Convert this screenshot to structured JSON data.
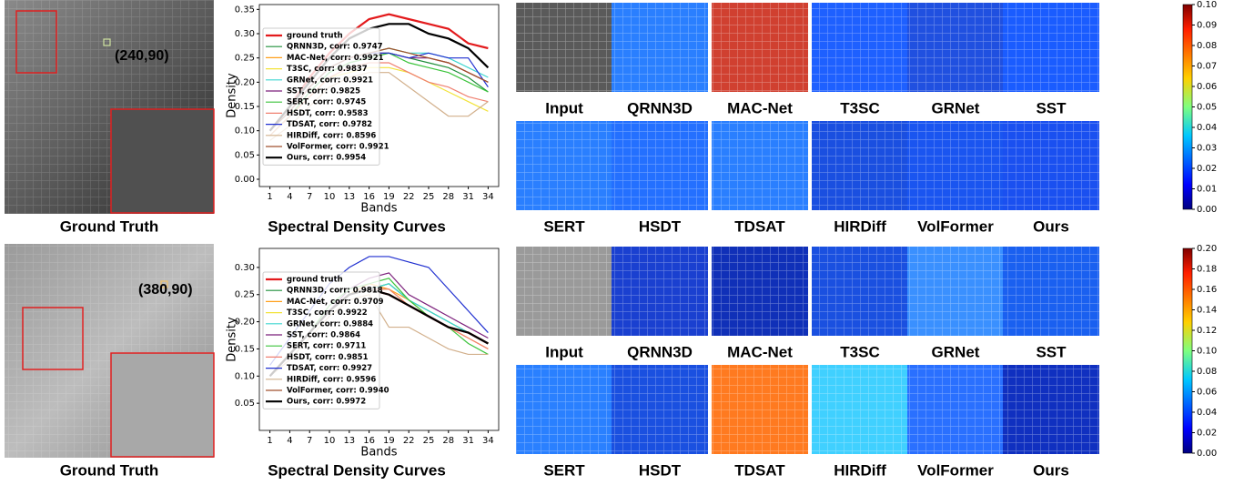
{
  "chart_data": [
    {
      "type": "line",
      "xlabel": "Bands",
      "ylabel": "Density",
      "x": [
        1,
        4,
        7,
        10,
        13,
        16,
        19,
        22,
        25,
        28,
        31,
        34
      ],
      "xlim": [
        -0.6,
        35.6
      ],
      "xticks": [
        1,
        4,
        7,
        10,
        13,
        16,
        19,
        22,
        25,
        28,
        31,
        34
      ],
      "ylim": [
        -0.015,
        0.36
      ],
      "yticks": [
        {
          "value": 0,
          "label": "0.00"
        },
        0.05,
        {
          "value": 0.1,
          "label": "0.10"
        },
        0.15,
        {
          "value": 0.2,
          "label": "0.20"
        },
        0.25,
        {
          "value": 0.3,
          "label": "0.30"
        },
        0.35
      ],
      "series": [
        {
          "name": "ground truth",
          "color": "#e31a1c",
          "values": [
            0.1,
            0.15,
            0.21,
            0.26,
            0.3,
            0.33,
            0.34,
            0.33,
            0.32,
            0.31,
            0.28,
            0.27
          ]
        },
        {
          "name": "QRNN3D, corr: 0.9747",
          "color": "#1f8f3a",
          "values": [
            0.09,
            0.13,
            0.18,
            0.22,
            0.24,
            0.25,
            0.26,
            0.25,
            0.24,
            0.23,
            0.21,
            0.18
          ]
        },
        {
          "name": "MAC-Net, corr: 0.9921",
          "color": "#ff9f1a",
          "values": [
            0.1,
            0.14,
            0.19,
            0.23,
            0.25,
            0.26,
            0.27,
            0.26,
            0.25,
            0.24,
            0.22,
            0.2
          ]
        },
        {
          "name": "T3SC, corr: 0.9837",
          "color": "#f2e33a",
          "values": [
            0.09,
            0.13,
            0.17,
            0.21,
            0.22,
            0.23,
            0.23,
            0.22,
            0.2,
            0.18,
            0.16,
            0.14
          ]
        },
        {
          "name": "GRNet, corr: 0.9921",
          "color": "#3fd6d0",
          "values": [
            0.1,
            0.14,
            0.19,
            0.23,
            0.25,
            0.26,
            0.27,
            0.26,
            0.26,
            0.25,
            0.23,
            0.21
          ]
        },
        {
          "name": "SST, corr: 0.9825",
          "color": "#7b1f7b",
          "values": [
            0.1,
            0.14,
            0.19,
            0.23,
            0.25,
            0.26,
            0.26,
            0.25,
            0.25,
            0.24,
            0.22,
            0.2
          ]
        },
        {
          "name": "SERT, corr: 0.9745",
          "color": "#3cc43c",
          "values": [
            0.09,
            0.13,
            0.18,
            0.22,
            0.24,
            0.25,
            0.26,
            0.24,
            0.23,
            0.22,
            0.2,
            0.18
          ]
        },
        {
          "name": "HSDT, corr: 0.9583",
          "color": "#f08070",
          "values": [
            0.09,
            0.13,
            0.17,
            0.21,
            0.23,
            0.24,
            0.24,
            0.22,
            0.2,
            0.19,
            0.17,
            0.16
          ]
        },
        {
          "name": "TDSAT, corr: 0.9782",
          "color": "#1f2fd0",
          "values": [
            0.1,
            0.14,
            0.19,
            0.23,
            0.25,
            0.26,
            0.26,
            0.25,
            0.26,
            0.25,
            0.25,
            0.19
          ]
        },
        {
          "name": "HIRDiff, corr: 0.8596",
          "color": "#d2b08c",
          "values": [
            0.08,
            0.11,
            0.15,
            0.19,
            0.21,
            0.22,
            0.22,
            0.19,
            0.16,
            0.13,
            0.13,
            0.16
          ]
        },
        {
          "name": "VolFormer, corr: 0.9921",
          "color": "#a0522d",
          "values": [
            0.1,
            0.14,
            0.19,
            0.23,
            0.25,
            0.26,
            0.27,
            0.26,
            0.25,
            0.24,
            0.22,
            0.2
          ]
        },
        {
          "name": "Ours, corr: 0.9954",
          "color": "#000000",
          "values": [
            0.1,
            0.15,
            0.2,
            0.25,
            0.29,
            0.31,
            0.32,
            0.32,
            0.3,
            0.29,
            0.27,
            0.23
          ]
        }
      ]
    },
    {
      "type": "line",
      "xlabel": "Bands",
      "ylabel": "Density",
      "x": [
        1,
        4,
        7,
        10,
        13,
        16,
        19,
        22,
        25,
        28,
        31,
        34
      ],
      "xlim": [
        -0.6,
        35.6
      ],
      "xticks": [
        1,
        4,
        7,
        10,
        13,
        16,
        19,
        22,
        25,
        28,
        31,
        34
      ],
      "ylim": [
        0.0,
        0.335
      ],
      "yticks": [
        0.05,
        {
          "value": 0.1,
          "label": "0.10"
        },
        0.15,
        {
          "value": 0.2,
          "label": "0.20"
        },
        0.25,
        {
          "value": 0.3,
          "label": "0.30"
        }
      ],
      "series": [
        {
          "name": "ground truth",
          "color": "#e31a1c",
          "values": [
            0.1,
            0.14,
            0.18,
            0.22,
            0.25,
            0.26,
            0.25,
            0.23,
            0.21,
            0.19,
            0.18,
            0.16
          ]
        },
        {
          "name": "QRNN3D, corr: 0.9818",
          "color": "#1f8f3a",
          "values": [
            0.1,
            0.14,
            0.18,
            0.22,
            0.25,
            0.26,
            0.27,
            0.24,
            0.22,
            0.2,
            0.18,
            0.16
          ]
        },
        {
          "name": "MAC-Net, corr: 0.9709",
          "color": "#ff9f1a",
          "values": [
            0.1,
            0.14,
            0.18,
            0.22,
            0.25,
            0.27,
            0.26,
            0.24,
            0.21,
            0.19,
            0.17,
            0.15
          ]
        },
        {
          "name": "T3SC, corr: 0.9922",
          "color": "#f2e33a",
          "values": [
            0.1,
            0.14,
            0.18,
            0.22,
            0.25,
            0.26,
            0.26,
            0.23,
            0.21,
            0.19,
            0.18,
            0.16
          ]
        },
        {
          "name": "GRNet, corr: 0.9884",
          "color": "#3fd6d0",
          "values": [
            0.1,
            0.14,
            0.18,
            0.22,
            0.25,
            0.26,
            0.27,
            0.24,
            0.22,
            0.2,
            0.18,
            0.16
          ]
        },
        {
          "name": "SST, corr: 0.9864",
          "color": "#7b1f7b",
          "values": [
            0.1,
            0.14,
            0.18,
            0.22,
            0.26,
            0.28,
            0.29,
            0.25,
            0.23,
            0.21,
            0.19,
            0.17
          ]
        },
        {
          "name": "SERT, corr: 0.9711",
          "color": "#3cc43c",
          "values": [
            0.1,
            0.14,
            0.18,
            0.23,
            0.26,
            0.27,
            0.28,
            0.24,
            0.21,
            0.19,
            0.16,
            0.14
          ]
        },
        {
          "name": "HSDT, corr: 0.9851",
          "color": "#f08070",
          "values": [
            0.1,
            0.14,
            0.18,
            0.22,
            0.25,
            0.26,
            0.26,
            0.23,
            0.21,
            0.19,
            0.17,
            0.15
          ]
        },
        {
          "name": "TDSAT, corr: 0.9927",
          "color": "#1f2fd0",
          "values": [
            0.12,
            0.17,
            0.22,
            0.27,
            0.3,
            0.32,
            0.32,
            0.31,
            0.3,
            0.26,
            0.22,
            0.18
          ]
        },
        {
          "name": "HIRDiff, corr: 0.9596",
          "color": "#d2b08c",
          "values": [
            0.1,
            0.13,
            0.17,
            0.21,
            0.24,
            0.25,
            0.19,
            0.19,
            0.17,
            0.15,
            0.14,
            0.14
          ]
        },
        {
          "name": "VolFormer, corr: 0.9940",
          "color": "#a0522d",
          "values": [
            0.1,
            0.14,
            0.18,
            0.22,
            0.25,
            0.26,
            0.25,
            0.23,
            0.21,
            0.19,
            0.18,
            0.16
          ]
        },
        {
          "name": "Ours, corr: 0.9972",
          "color": "#000000",
          "values": [
            0.1,
            0.14,
            0.18,
            0.22,
            0.25,
            0.26,
            0.25,
            0.23,
            0.21,
            0.19,
            0.18,
            0.16
          ]
        }
      ]
    }
  ],
  "rows": [
    {
      "gt_caption": "Ground Truth",
      "coord": "(240,90)",
      "curve_caption": "Spectral Density Curves",
      "labels": [
        "Input",
        "QRNN3D",
        "MAC-Net",
        "T3SC",
        "GRNet",
        "SST",
        "SERT",
        "HSDT",
        "TDSAT",
        "HIRDiff",
        "VolFormer",
        "Ours"
      ],
      "colorbar": {
        "lim": [
          0,
          0.1
        ],
        "ticks": [
          {
            "value": 0,
            "label": "0.00"
          },
          0.01,
          0.02,
          0.03,
          0.04,
          0.05,
          0.06,
          0.07,
          0.08,
          0.09,
          {
            "value": 0.1,
            "label": "0.10"
          }
        ]
      }
    },
    {
      "gt_caption": "Ground Truth",
      "coord": "(380,90)",
      "curve_caption": "Spectral Density Curves",
      "labels": [
        "Input",
        "QRNN3D",
        "MAC-Net",
        "T3SC",
        "GRNet",
        "SST",
        "SERT",
        "HSDT",
        "TDSAT",
        "HIRDiff",
        "VolFormer",
        "Ours"
      ],
      "colorbar": {
        "lim": [
          0,
          0.2
        ],
        "ticks": [
          {
            "value": 0,
            "label": "0.00"
          },
          0.02,
          0.04,
          0.06,
          0.08,
          {
            "value": 0.1,
            "label": "0.10"
          },
          0.12,
          0.14,
          0.16,
          0.18,
          {
            "value": 0.2,
            "label": "0.20"
          }
        ]
      }
    }
  ]
}
